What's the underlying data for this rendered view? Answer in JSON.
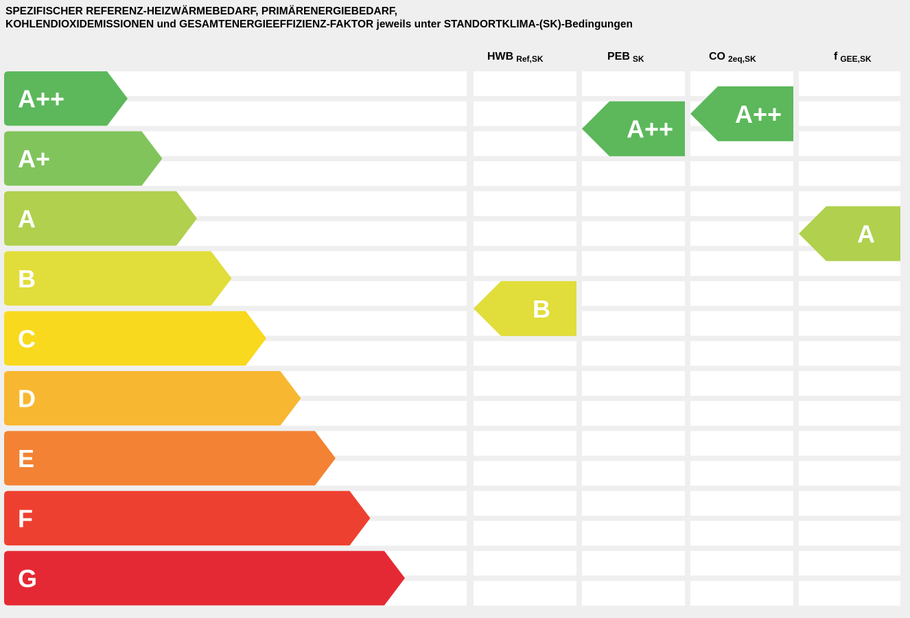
{
  "title": {
    "line1": "SPEZIFISCHER REFERENZ-HEIZWÄRMEBEDARF, PRIMÄRENERGIEBEDARF,",
    "line2": "KOHLENDIOXIDEMISSIONEN und GESAMTENERGIEEFFIZIENZ-FAKTOR jeweils unter STANDORTKLIMA-(SK)-Bedingungen"
  },
  "columns": [
    {
      "name": "HWB",
      "sub": "Ref,SK"
    },
    {
      "name": "PEB",
      "sub": "SK"
    },
    {
      "name": "CO",
      "sub": "2eq,SK"
    },
    {
      "name": "f",
      "sub": "GEE,SK"
    }
  ],
  "chart_data": {
    "type": "bar",
    "categories": [
      "A++",
      "A+",
      "A",
      "B",
      "C",
      "D",
      "E",
      "F",
      "G"
    ],
    "colors": [
      "#5cb85b",
      "#81c45c",
      "#b0d04e",
      "#e1dd3a",
      "#f8d91e",
      "#f7b730",
      "#f38234",
      "#ee4030",
      "#e52934"
    ],
    "ratings": [
      {
        "column": "HWB",
        "class": "B",
        "position": 3.5
      },
      {
        "column": "PEB",
        "class": "A++",
        "position": 0.5
      },
      {
        "column": "CO",
        "class": "A++",
        "position": 0.25
      },
      {
        "column": "f",
        "class": "A",
        "position": 2.25
      }
    ]
  }
}
